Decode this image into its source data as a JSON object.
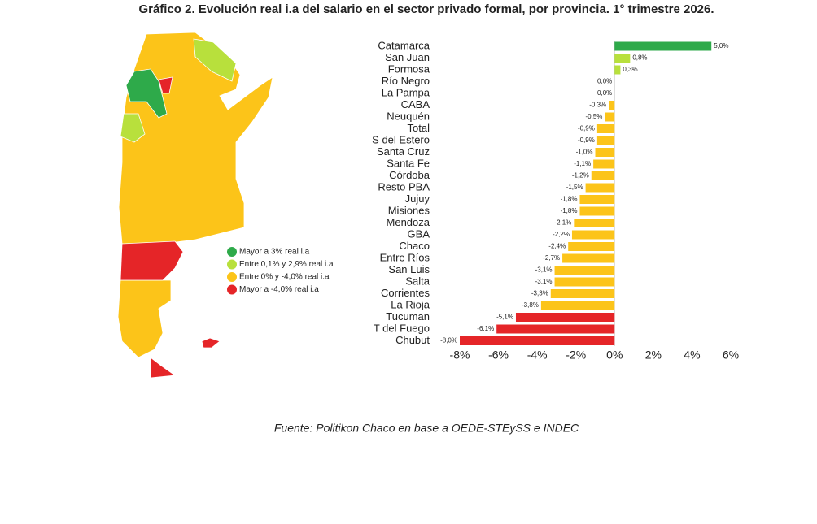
{
  "chart_data": {
    "type": "hbar",
    "title": "Gráfico 2. Evolución real i.a del salario en el sector privado formal, por provincia. 1° trimestre 2026.",
    "source": "Fuente: Politikon Chaco en base a OEDE-STEySS e INDEC",
    "categories": [
      "Catamarca",
      "San Juan",
      "Formosa",
      "Río Negro",
      "La Pampa",
      "CABA",
      "Neuquén",
      "Total",
      "S del Estero",
      "Santa Cruz",
      "Santa Fe",
      "Córdoba",
      "Resto PBA",
      "Jujuy",
      "Misiones",
      "Mendoza",
      "GBA",
      "Chaco",
      "Entre Ríos",
      "San Luis",
      "Salta",
      "Corrientes",
      "La Rioja",
      "Tucuman",
      "T del Fuego",
      "Chubut"
    ],
    "values": [
      5.0,
      0.8,
      0.3,
      0.0,
      0.0,
      -0.3,
      -0.5,
      -0.9,
      -0.9,
      -1.0,
      -1.1,
      -1.2,
      -1.5,
      -1.8,
      -1.8,
      -2.1,
      -2.2,
      -2.4,
      -2.7,
      -3.1,
      -3.1,
      -3.3,
      -3.8,
      -5.1,
      -6.1,
      -8.0
    ],
    "value_labels": [
      "5,0%",
      "0,8%",
      "0,3%",
      "0,0%",
      "0,0%",
      "-0,3%",
      "-0,5%",
      "-0,9%",
      "-0,9%",
      "-1,0%",
      "-1,1%",
      "-1,2%",
      "-1,5%",
      "-1,8%",
      "-1,8%",
      "-2,1%",
      "-2,2%",
      "-2,4%",
      "-2,7%",
      "-3,1%",
      "-3,1%",
      "-3,3%",
      "-3,8%",
      "-5,1%",
      "-6,1%",
      "-8,0%"
    ],
    "colors": [
      "#2eaa4a",
      "#b8e03c",
      "#b8e03c",
      "#fcc419",
      "#fcc419",
      "#fcc419",
      "#fcc419",
      "#fcc419",
      "#fcc419",
      "#fcc419",
      "#fcc419",
      "#fcc419",
      "#fcc419",
      "#fcc419",
      "#fcc419",
      "#fcc419",
      "#fcc419",
      "#fcc419",
      "#fcc419",
      "#fcc419",
      "#fcc419",
      "#fcc419",
      "#fcc419",
      "#e52528",
      "#e52528",
      "#e52528"
    ],
    "xlim": [
      -8,
      6
    ],
    "xticks": [
      {
        "value": -8,
        "label": "-8%"
      },
      {
        "value": -6,
        "label": "-6%"
      },
      {
        "value": -4,
        "label": "-4%"
      },
      {
        "value": -2,
        "label": "-2%"
      },
      {
        "value": 0,
        "label": "0%"
      },
      {
        "value": 2,
        "label": "2%"
      },
      {
        "value": 4,
        "label": "4%"
      },
      {
        "value": 6,
        "label": "6%"
      }
    ],
    "map_legend": [
      {
        "label": "Mayor a 3% real i.a",
        "color": "#2eaa4a"
      },
      {
        "label": "Entre 0,1% y 2,9% real i.a",
        "color": "#b8e03c"
      },
      {
        "label": "Entre 0% y -4,0% real i.a",
        "color": "#fcc419"
      },
      {
        "label": "Mayor a -4,0% real i.a",
        "color": "#e52528"
      }
    ]
  }
}
